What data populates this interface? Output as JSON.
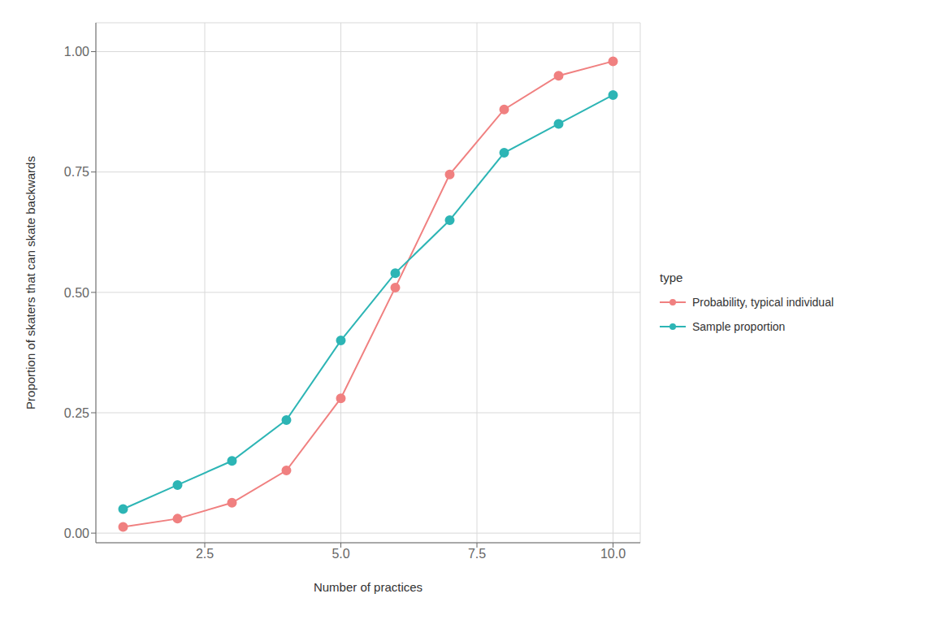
{
  "chart_data": {
    "type": "line",
    "xlabel": "Number of practices",
    "ylabel": "Proportion of skaters that can skate backwards",
    "legend_title": "type",
    "x": [
      1,
      2,
      3,
      4,
      5,
      6,
      7,
      8,
      9,
      10
    ],
    "series": [
      {
        "name": "Probability, typical individual",
        "color": "#F08080",
        "values": [
          0.013,
          0.03,
          0.063,
          0.13,
          0.28,
          0.51,
          0.745,
          0.88,
          0.95,
          0.98
        ]
      },
      {
        "name": "Sample proportion",
        "color": "#2DB5B5",
        "values": [
          0.05,
          0.1,
          0.15,
          0.235,
          0.4,
          0.54,
          0.65,
          0.79,
          0.85,
          0.91
        ]
      }
    ],
    "xlim": [
      0.5,
      10.5
    ],
    "ylim": [
      -0.02,
      1.06
    ],
    "xticks": [
      2.5,
      {
        "value": 5,
        "label": "5.0"
      },
      7.5,
      {
        "value": 10,
        "label": "10.0"
      }
    ],
    "yticks": [
      {
        "value": 0,
        "label": "0.00"
      },
      0.25,
      {
        "value": 0.5,
        "label": "0.50"
      },
      0.75,
      {
        "value": 1,
        "label": "1.00"
      }
    ],
    "grid": true,
    "legend": "right",
    "marker": "circle"
  }
}
